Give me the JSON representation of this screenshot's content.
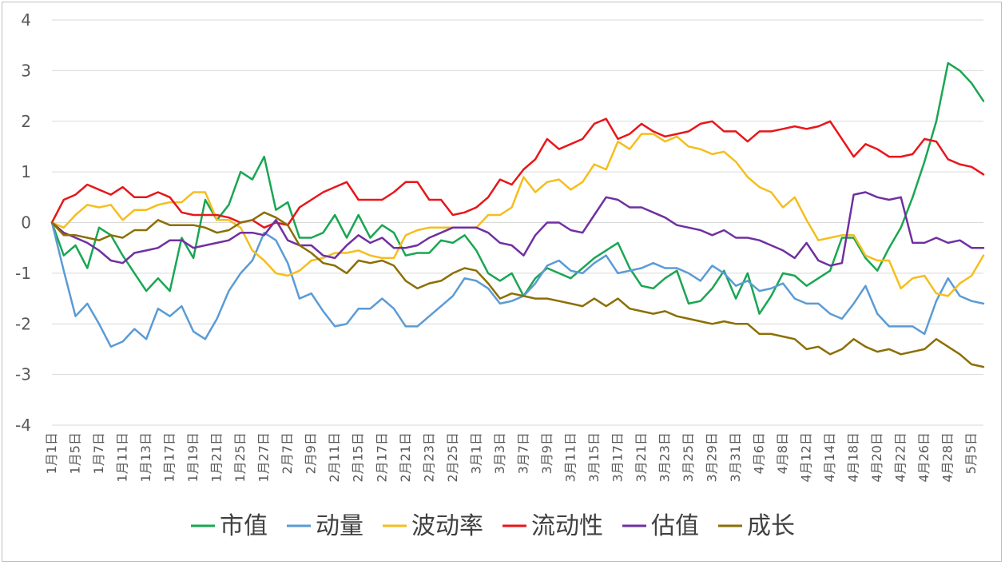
{
  "chart_data": {
    "type": "line",
    "title": "",
    "xlabel": "",
    "ylabel": "",
    "ylim": [
      -4,
      4
    ],
    "yticks": [
      4,
      3,
      2,
      1,
      0,
      -1,
      -2,
      -3,
      -4
    ],
    "grid": true,
    "legend_position": "bottom",
    "x_tick_labels": [
      "1月1日",
      "1月5日",
      "1月7日",
      "1月11日",
      "1月13日",
      "1月17日",
      "1月19日",
      "1月21日",
      "1月25日",
      "1月27日",
      "2月7日",
      "2月9日",
      "2月11日",
      "2月15日",
      "2月17日",
      "2月21日",
      "2月23日",
      "2月25日",
      "3月1日",
      "3月3日",
      "3月7日",
      "3月9日",
      "3月11日",
      "3月15日",
      "3月17日",
      "3月21日",
      "3月23日",
      "3月25日",
      "3月29日",
      "3月31日",
      "4月6日",
      "4月8日",
      "4月12日",
      "4月14日",
      "4月18日",
      "4月20日",
      "4月22日",
      "4月26日",
      "4月28日",
      "5月5日"
    ],
    "points_per_tick": 2,
    "series": [
      {
        "name": "市值",
        "color": "#1aa652",
        "values": [
          0,
          -0.65,
          -0.45,
          -0.9,
          -0.1,
          -0.25,
          -0.65,
          -1.0,
          -1.35,
          -1.1,
          -1.35,
          -0.3,
          -0.7,
          0.45,
          0.05,
          0.35,
          1.0,
          0.85,
          1.3,
          0.25,
          0.4,
          -0.3,
          -0.3,
          -0.2,
          0.15,
          -0.3,
          0.15,
          -0.3,
          -0.05,
          -0.2,
          -0.65,
          -0.6,
          -0.6,
          -0.35,
          -0.4,
          -0.25,
          -0.55,
          -1.0,
          -1.15,
          -1.0,
          -1.45,
          -1.1,
          -0.9,
          -1.0,
          -1.1,
          -0.9,
          -0.7,
          -0.55,
          -0.4,
          -0.9,
          -1.25,
          -1.3,
          -1.1,
          -0.95,
          -1.6,
          -1.55,
          -1.3,
          -0.95,
          -1.5,
          -1.0,
          -1.8,
          -1.45,
          -1.0,
          -1.05,
          -1.25,
          -1.1,
          -0.95,
          -0.3,
          -0.3,
          -0.7,
          -0.95,
          -0.5,
          -0.1,
          0.5,
          1.2,
          2.0,
          3.15,
          3.0,
          2.75,
          2.4
        ]
      },
      {
        "name": "动量",
        "color": "#5b9bd5",
        "values": [
          0,
          -0.95,
          -1.85,
          -1.6,
          -2.0,
          -2.45,
          -2.35,
          -2.1,
          -2.3,
          -1.7,
          -1.85,
          -1.65,
          -2.15,
          -2.3,
          -1.9,
          -1.35,
          -1.0,
          -0.75,
          -0.2,
          -0.35,
          -0.8,
          -1.5,
          -1.4,
          -1.75,
          -2.05,
          -2.0,
          -1.7,
          -1.7,
          -1.5,
          -1.7,
          -2.05,
          -2.05,
          -1.85,
          -1.65,
          -1.45,
          -1.1,
          -1.15,
          -1.3,
          -1.6,
          -1.55,
          -1.45,
          -1.2,
          -0.85,
          -0.75,
          -0.95,
          -1.0,
          -0.8,
          -0.65,
          -1.0,
          -0.95,
          -0.9,
          -0.8,
          -0.9,
          -0.9,
          -1.0,
          -1.15,
          -0.85,
          -1.0,
          -1.25,
          -1.15,
          -1.35,
          -1.3,
          -1.2,
          -1.5,
          -1.6,
          -1.6,
          -1.8,
          -1.9,
          -1.6,
          -1.25,
          -1.8,
          -2.05,
          -2.05,
          -2.05,
          -2.2,
          -1.55,
          -1.1,
          -1.45,
          -1.55,
          -1.6
        ]
      },
      {
        "name": "波动率",
        "color": "#f5be1e",
        "values": [
          0,
          -0.1,
          0.15,
          0.35,
          0.3,
          0.35,
          0.05,
          0.25,
          0.25,
          0.35,
          0.4,
          0.4,
          0.6,
          0.6,
          0.05,
          0.05,
          -0.1,
          -0.55,
          -0.75,
          -1.0,
          -1.05,
          -0.95,
          -0.75,
          -0.7,
          -0.6,
          -0.6,
          -0.55,
          -0.65,
          -0.7,
          -0.7,
          -0.25,
          -0.15,
          -0.1,
          -0.1,
          -0.1,
          -0.1,
          -0.1,
          0.15,
          0.15,
          0.3,
          0.9,
          0.6,
          0.8,
          0.85,
          0.65,
          0.8,
          1.15,
          1.05,
          1.6,
          1.45,
          1.75,
          1.75,
          1.6,
          1.7,
          1.5,
          1.45,
          1.35,
          1.4,
          1.2,
          0.9,
          0.7,
          0.6,
          0.3,
          0.5,
          0.05,
          -0.35,
          -0.3,
          -0.25,
          -0.25,
          -0.65,
          -0.75,
          -0.75,
          -1.3,
          -1.1,
          -1.05,
          -1.4,
          -1.45,
          -1.2,
          -1.05,
          -0.65
        ]
      },
      {
        "name": "流动性",
        "color": "#e8161a",
        "values": [
          0,
          0.45,
          0.55,
          0.75,
          0.65,
          0.55,
          0.7,
          0.5,
          0.5,
          0.6,
          0.5,
          0.2,
          0.15,
          0.15,
          0.15,
          0.1,
          0.0,
          0.05,
          -0.1,
          0.0,
          -0.05,
          0.3,
          0.45,
          0.6,
          0.7,
          0.8,
          0.45,
          0.45,
          0.45,
          0.6,
          0.8,
          0.8,
          0.45,
          0.45,
          0.15,
          0.2,
          0.3,
          0.5,
          0.85,
          0.75,
          1.05,
          1.25,
          1.65,
          1.45,
          1.55,
          1.65,
          1.95,
          2.05,
          1.65,
          1.75,
          1.95,
          1.8,
          1.7,
          1.75,
          1.8,
          1.95,
          2.0,
          1.8,
          1.8,
          1.6,
          1.8,
          1.8,
          1.85,
          1.9,
          1.85,
          1.9,
          2.0,
          1.65,
          1.3,
          1.55,
          1.45,
          1.3,
          1.3,
          1.35,
          1.65,
          1.6,
          1.25,
          1.15,
          1.1,
          0.95
        ]
      },
      {
        "name": "估值",
        "color": "#7030a0",
        "values": [
          0,
          -0.2,
          -0.3,
          -0.4,
          -0.55,
          -0.75,
          -0.8,
          -0.6,
          -0.55,
          -0.5,
          -0.35,
          -0.35,
          -0.5,
          -0.45,
          -0.4,
          -0.35,
          -0.2,
          -0.2,
          -0.25,
          0.05,
          -0.35,
          -0.45,
          -0.45,
          -0.65,
          -0.7,
          -0.45,
          -0.25,
          -0.4,
          -0.3,
          -0.5,
          -0.5,
          -0.45,
          -0.3,
          -0.2,
          -0.1,
          -0.1,
          -0.1,
          -0.2,
          -0.4,
          -0.45,
          -0.65,
          -0.25,
          0.0,
          0.0,
          -0.15,
          -0.2,
          0.15,
          0.5,
          0.45,
          0.3,
          0.3,
          0.2,
          0.1,
          -0.05,
          -0.1,
          -0.15,
          -0.25,
          -0.15,
          -0.3,
          -0.3,
          -0.35,
          -0.45,
          -0.55,
          -0.7,
          -0.4,
          -0.75,
          -0.85,
          -0.8,
          0.55,
          0.6,
          0.5,
          0.45,
          0.5,
          -0.4,
          -0.4,
          -0.3,
          -0.4,
          -0.35,
          -0.5,
          -0.5
        ]
      },
      {
        "name": "成长",
        "color": "#8b6f05",
        "values": [
          0,
          -0.25,
          -0.25,
          -0.3,
          -0.35,
          -0.25,
          -0.3,
          -0.15,
          -0.15,
          0.05,
          -0.05,
          -0.05,
          -0.05,
          -0.1,
          -0.2,
          -0.15,
          0.0,
          0.05,
          0.2,
          0.1,
          -0.05,
          -0.45,
          -0.6,
          -0.8,
          -0.85,
          -1.0,
          -0.75,
          -0.8,
          -0.75,
          -0.85,
          -1.15,
          -1.3,
          -1.2,
          -1.15,
          -1.0,
          -0.9,
          -0.95,
          -1.2,
          -1.5,
          -1.4,
          -1.45,
          -1.5,
          -1.5,
          -1.55,
          -1.6,
          -1.65,
          -1.5,
          -1.65,
          -1.5,
          -1.7,
          -1.75,
          -1.8,
          -1.75,
          -1.85,
          -1.9,
          -1.95,
          -2.0,
          -1.95,
          -2.0,
          -2.0,
          -2.2,
          -2.2,
          -2.25,
          -2.3,
          -2.5,
          -2.45,
          -2.6,
          -2.5,
          -2.3,
          -2.45,
          -2.55,
          -2.5,
          -2.6,
          -2.55,
          -2.5,
          -2.3,
          -2.45,
          -2.6,
          -2.8,
          -2.85
        ]
      }
    ]
  }
}
